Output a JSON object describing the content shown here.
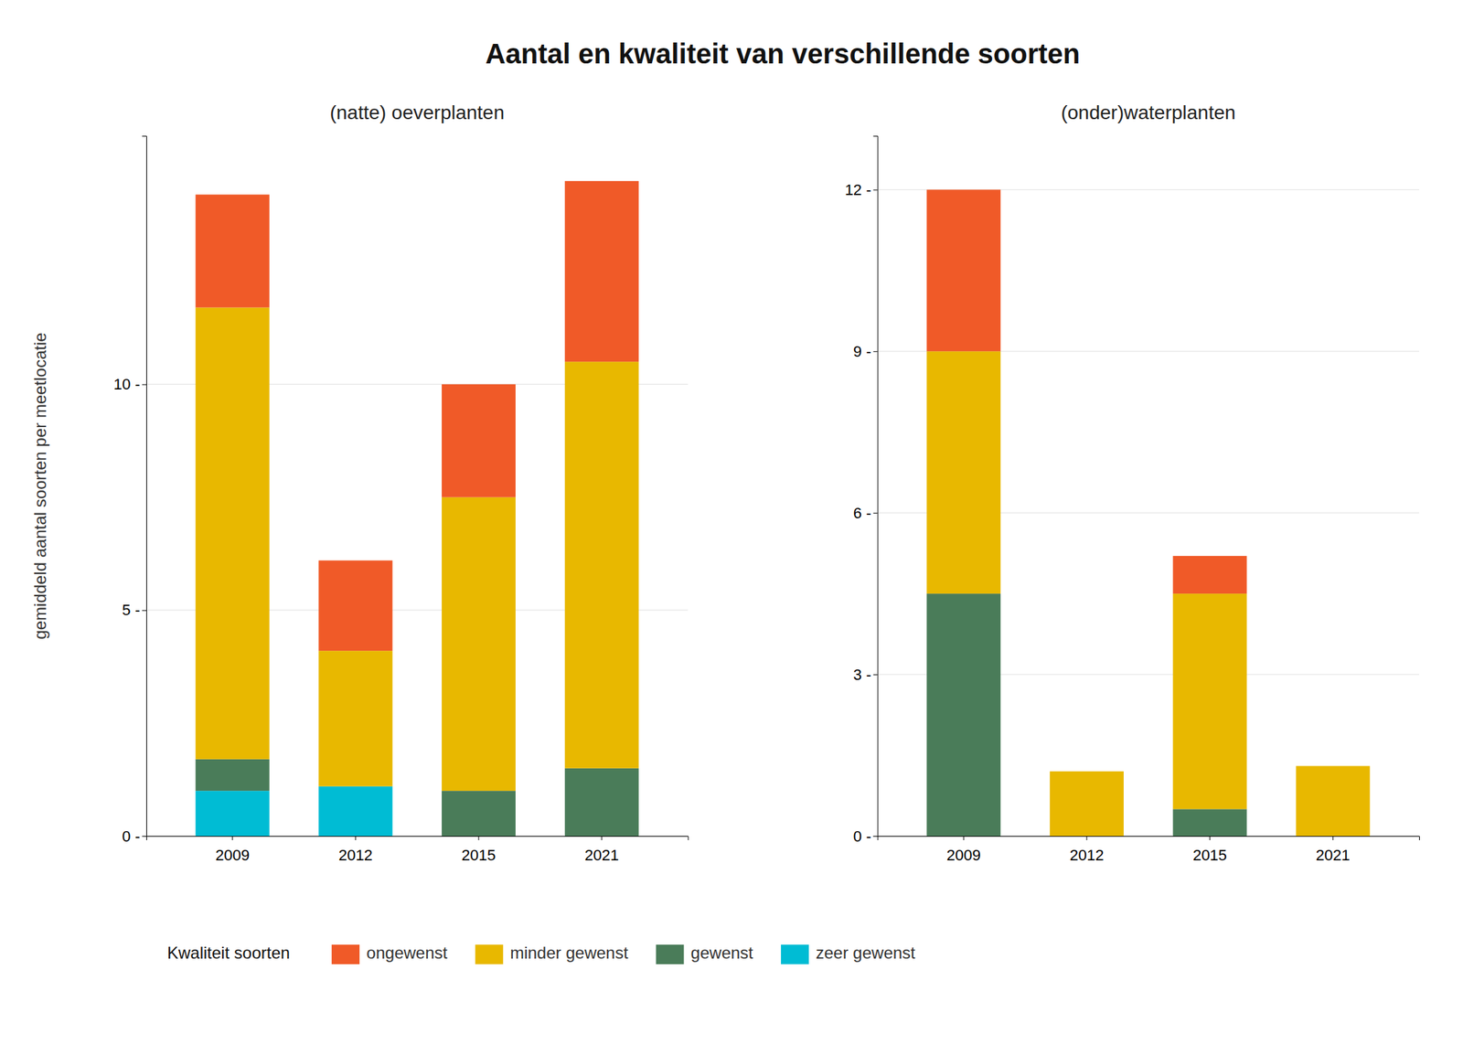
{
  "chart_data": [
    {
      "type": "bar",
      "stacked": true,
      "title": "Aantal en kwaliteit van verschillende soorten",
      "subtitle": "(natte) oeverplanten",
      "ylabel": "gemiddeld aantal soorten per meetlocatie",
      "legend_title": "Kwaliteit soorten",
      "legend": "bottom",
      "categories": [
        "2009",
        "2012",
        "2015",
        "2021"
      ],
      "series": [
        {
          "name": "zeer gewenst",
          "color": "#00BCD4",
          "values": [
            1.0,
            1.1,
            0.0,
            0.0
          ]
        },
        {
          "name": "gewenst",
          "color": "#4A7C59",
          "values": [
            0.7,
            0.0,
            1.0,
            1.5
          ]
        },
        {
          "name": "minder gewenst",
          "color": "#E8B800",
          "values": [
            10.0,
            3.0,
            6.5,
            9.0
          ]
        },
        {
          "name": "ongewenst",
          "color": "#F05A28",
          "values": [
            2.5,
            2.0,
            2.5,
            4.0
          ]
        }
      ],
      "ylim": [
        0,
        15.5
      ],
      "yticks": [
        {
          "value": 0,
          "label": "0 -"
        },
        {
          "value": 5,
          "label": "5 -"
        },
        {
          "value": 10,
          "label": "10 -"
        }
      ],
      "grid": true
    },
    {
      "type": "bar",
      "stacked": true,
      "subtitle": "(onder)waterplanten",
      "categories": [
        "2009",
        "2012",
        "2015",
        "2021"
      ],
      "series": [
        {
          "name": "zeer gewenst",
          "color": "#00BCD4",
          "values": [
            0.0,
            0.0,
            0.0,
            0.0
          ]
        },
        {
          "name": "gewenst",
          "color": "#4A7C59",
          "values": [
            4.5,
            0.0,
            0.5,
            0.0
          ]
        },
        {
          "name": "minder gewenst",
          "color": "#E8B800",
          "values": [
            4.5,
            1.2,
            4.0,
            1.3
          ]
        },
        {
          "name": "ongewenst",
          "color": "#F05A28",
          "values": [
            3.0,
            0.0,
            0.7,
            0.0
          ]
        }
      ],
      "ylim": [
        0,
        13.0
      ],
      "yticks": [
        {
          "value": 0,
          "label": "0 -"
        },
        {
          "value": 3,
          "label": "3 -"
        },
        {
          "value": 6,
          "label": "6 -"
        },
        {
          "value": 9,
          "label": "9 -"
        },
        {
          "value": 12,
          "label": "12 -"
        }
      ],
      "grid": true
    }
  ]
}
